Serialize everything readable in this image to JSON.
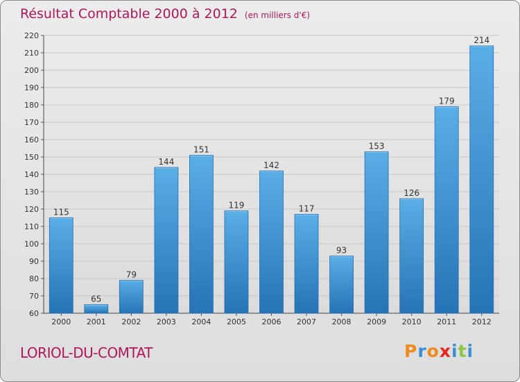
{
  "header": {
    "title": "Résultat Comptable 2000 à 2012",
    "unit": "(en milliers d'€)"
  },
  "footer": {
    "town": "LORIOL-DU-COMTAT",
    "logo_letters": [
      "P",
      "r",
      "o",
      "x",
      "i",
      "t",
      "i"
    ],
    "logo_colors": [
      "#f08a1c",
      "#3a8fd6",
      "#f08a1c",
      "#e8261b",
      "#3a8fd6",
      "#8cc63f",
      "#3a8fd6"
    ]
  },
  "chart_data": {
    "type": "bar",
    "title": "Résultat Comptable 2000 à 2012",
    "subtitle": "(en milliers d'€)",
    "categories": [
      "2000",
      "2001",
      "2002",
      "2003",
      "2004",
      "2005",
      "2006",
      "2007",
      "2008",
      "2009",
      "2010",
      "2011",
      "2012"
    ],
    "values": [
      115,
      65,
      79,
      144,
      151,
      119,
      142,
      117,
      93,
      153,
      126,
      179,
      214
    ],
    "ylim": [
      60,
      220
    ],
    "yticks": [
      60,
      70,
      80,
      90,
      100,
      110,
      120,
      130,
      140,
      150,
      160,
      170,
      180,
      190,
      200,
      210,
      220
    ],
    "grid": true,
    "bar_color": "#3d93d6",
    "xlabel": "",
    "ylabel": ""
  }
}
